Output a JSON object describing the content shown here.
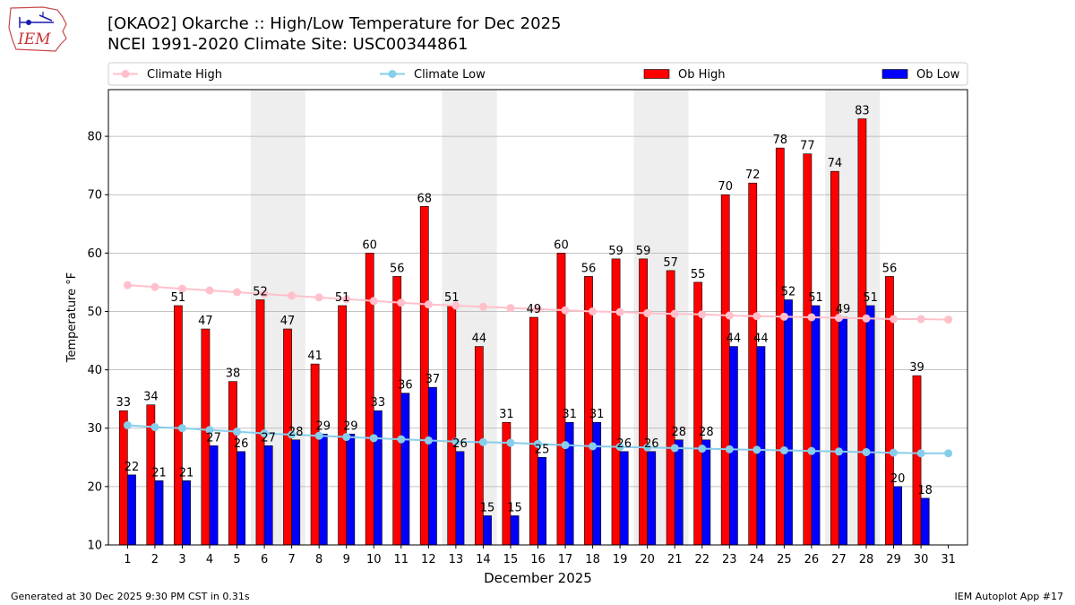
{
  "header": {
    "title_line1": "[OKAO2] Okarche :: High/Low Temperature for Dec 2025",
    "title_line2": "NCEI 1991-2020 Climate Site: USC00344861",
    "logo_text": "IEM"
  },
  "footer": {
    "generated": "Generated at 30 Dec 2025 9:30 PM CST in 0.31s",
    "app": "IEM Autoplot App #17"
  },
  "colors": {
    "ob_high": "#ff0000",
    "ob_low": "#0000ff",
    "climate_high": "#ffc0cb",
    "climate_low": "#87ceeb",
    "weekend_shade": "#eeeeee",
    "grid": "#b0b0b0"
  },
  "chart_data": {
    "type": "bar",
    "xlabel": "December 2025",
    "ylabel": "Temperature °F",
    "ylim": [
      10,
      88
    ],
    "yticks": [
      10,
      20,
      30,
      40,
      50,
      60,
      70,
      80
    ],
    "grid": "horizontal",
    "legend_position": "top",
    "categories": [
      "1",
      "2",
      "3",
      "4",
      "5",
      "6",
      "7",
      "8",
      "9",
      "10",
      "11",
      "12",
      "13",
      "14",
      "15",
      "16",
      "17",
      "18",
      "19",
      "20",
      "21",
      "22",
      "23",
      "24",
      "25",
      "26",
      "27",
      "28",
      "29",
      "30",
      "31"
    ],
    "shaded_days": [
      [
        6,
        7
      ],
      [
        13,
        14
      ],
      [
        20,
        21
      ],
      [
        27,
        28
      ]
    ],
    "series": [
      {
        "name": "Ob High",
        "kind": "bar",
        "values": [
          33,
          34,
          51,
          47,
          38,
          52,
          47,
          41,
          51,
          60,
          56,
          68,
          51,
          44,
          31,
          49,
          60,
          56,
          59,
          59,
          57,
          55,
          70,
          72,
          78,
          77,
          74,
          83,
          56,
          39,
          null
        ]
      },
      {
        "name": "Ob Low",
        "kind": "bar",
        "values": [
          22,
          21,
          21,
          27,
          26,
          27,
          28,
          29,
          29,
          33,
          36,
          37,
          26,
          15,
          15,
          25,
          31,
          31,
          26,
          26,
          28,
          28,
          44,
          44,
          52,
          51,
          49,
          51,
          20,
          18,
          null
        ]
      },
      {
        "name": "Climate High",
        "kind": "line",
        "values": [
          54.5,
          54.2,
          53.9,
          53.6,
          53.3,
          53.0,
          52.7,
          52.4,
          52.1,
          51.8,
          51.5,
          51.2,
          51.0,
          50.8,
          50.6,
          50.4,
          50.2,
          50.0,
          49.9,
          49.7,
          49.6,
          49.5,
          49.3,
          49.2,
          49.1,
          49.0,
          48.9,
          48.8,
          48.7,
          48.7,
          48.6
        ]
      },
      {
        "name": "Climate Low",
        "kind": "line",
        "values": [
          30.5,
          30.2,
          30.0,
          29.7,
          29.4,
          29.1,
          28.9,
          28.7,
          28.5,
          28.3,
          28.1,
          27.9,
          27.7,
          27.6,
          27.5,
          27.3,
          27.1,
          26.9,
          26.8,
          26.7,
          26.6,
          26.5,
          26.4,
          26.3,
          26.2,
          26.1,
          26.0,
          25.9,
          25.8,
          25.7,
          25.7
        ]
      }
    ]
  }
}
